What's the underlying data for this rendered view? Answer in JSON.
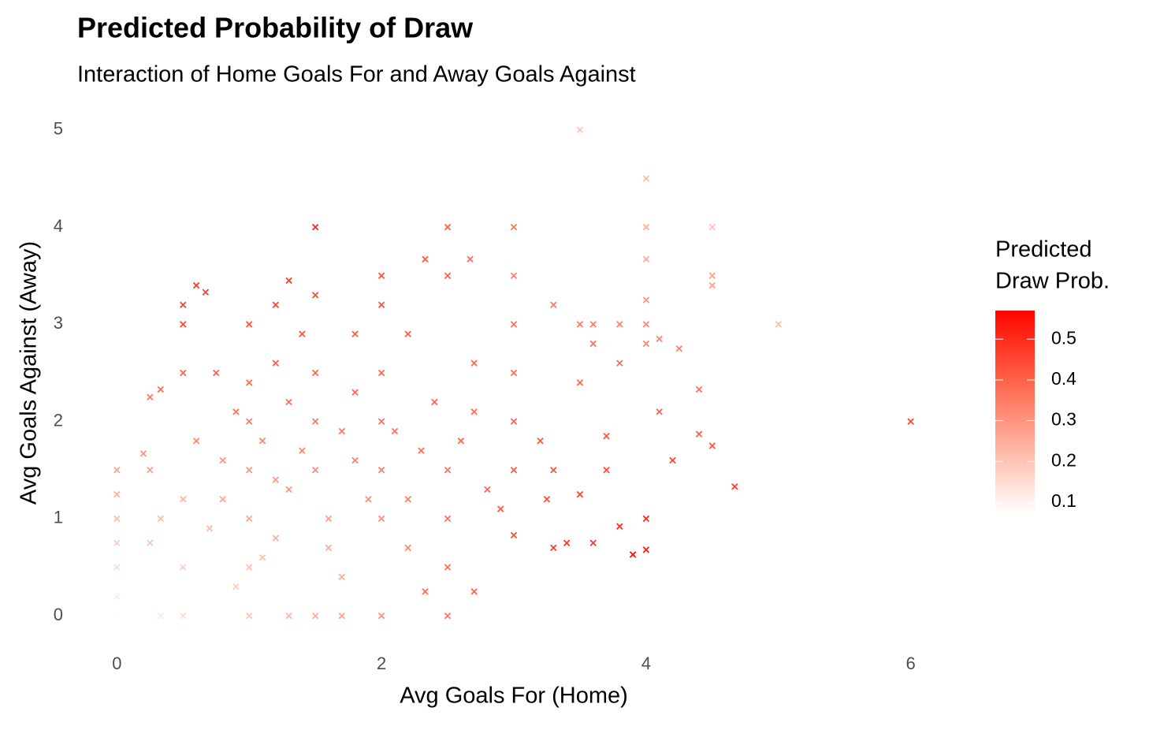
{
  "chart_data": {
    "type": "scatter",
    "title": "Predicted Probability of Draw",
    "subtitle": "Interaction of Home Goals For and Away Goals Against",
    "x_label": "Avg Goals For (Home)",
    "y_label": "Avg Goals Against (Away)",
    "legend_title": [
      "Predicted",
      "Draw Prob."
    ],
    "marker": "x",
    "low_color": "#ffffff",
    "high_color": "#ff0000",
    "colorlim": [
      0.073,
      0.57
    ],
    "colorticks": [
      0.1,
      0.2,
      0.3,
      0.4,
      0.5
    ],
    "xlim": [
      -0.3,
      6.3
    ],
    "xticks": [
      0,
      2,
      4,
      6
    ],
    "ylim": [
      -0.25,
      5.25
    ],
    "yticks": [
      0,
      1,
      2,
      3,
      4,
      5
    ],
    "grid": false,
    "x": [
      3.5,
      4,
      1.5,
      2.5,
      3,
      4,
      4.5,
      4.5,
      4.5,
      5,
      6,
      4.67,
      4.2,
      4.5,
      3.9,
      4,
      4,
      0.6,
      0.67,
      0.5,
      0.5,
      0,
      0,
      0,
      0,
      0,
      0,
      0,
      0.33,
      0.5,
      1,
      1.5,
      2,
      2.5,
      1.3,
      1.7,
      2.7,
      2.33,
      0.25,
      0.33,
      0.2,
      0.25,
      0.25,
      0.33,
      0.5,
      4,
      4,
      4,
      4,
      3.5,
      3.6,
      3.8,
      4.1,
      4.25,
      4.4,
      4.1,
      4.4,
      3.8,
      3.3,
      3.5,
      3.7,
      3.7,
      3.4,
      3.3,
      3.6,
      3.8,
      3.25,
      3,
      3,
      3,
      3,
      3,
      3,
      2.5,
      2.33,
      2.67,
      2,
      2,
      1.5,
      1.3,
      1.2,
      1,
      0.75,
      0.9,
      1,
      1,
      1,
      1,
      1.2,
      1.3,
      1.4,
      1.5,
      1.5,
      1.5,
      1.6,
      1.8,
      1.8,
      2,
      2,
      2,
      2,
      2.2,
      2.3,
      2.4,
      2.5,
      2.5,
      2.5,
      2.6,
      2.7,
      2.8,
      1.2,
      0.8,
      0.7,
      0.6,
      0.9,
      1.1,
      1.7,
      2.2,
      0.5,
      0.5,
      1.4,
      1.8,
      2.2,
      3.2,
      3.5,
      3.6,
      1.3,
      1.1,
      0.8,
      1.6,
      1.9,
      2.1,
      2.7,
      1.7,
      1.2,
      1.0,
      3.3,
      2.9
    ],
    "y": [
      5,
      4.5,
      4,
      4,
      4,
      4,
      4,
      3.5,
      3.4,
      3,
      2,
      1.33,
      1.6,
      1.75,
      0.63,
      0.68,
      1,
      3.4,
      3.33,
      3.2,
      3,
      1.5,
      1.25,
      1,
      0.75,
      0.5,
      0.2,
      0,
      0,
      0,
      0,
      0,
      0,
      0,
      0,
      0,
      0.25,
      0.25,
      2.25,
      2.33,
      1.67,
      1.5,
      0.75,
      1,
      2.5,
      3.67,
      3.25,
      3,
      2.8,
      3,
      3,
      3,
      2.85,
      2.75,
      2.33,
      2.1,
      1.87,
      2.6,
      3.2,
      2.4,
      1.85,
      1.5,
      0.75,
      0.7,
      0.75,
      0.92,
      1.2,
      0.83,
      1.5,
      2,
      2.5,
      3,
      3.5,
      3.5,
      3.67,
      3.67,
      3.5,
      3.2,
      3.3,
      3.45,
      3.2,
      3,
      2.5,
      2.1,
      2,
      1.5,
      1,
      0.5,
      0.8,
      1.3,
      1.7,
      1.5,
      2,
      2.5,
      1.0,
      1.6,
      2.3,
      1,
      1.5,
      2,
      2.5,
      1.2,
      1.7,
      2.2,
      1.5,
      1,
      0.5,
      1.8,
      2.6,
      1.3,
      2.6,
      1.2,
      0.9,
      1.8,
      0.3,
      0.6,
      0.4,
      0.7,
      0.5,
      1.2,
      2.9,
      2.9,
      2.9,
      1.8,
      1.25,
      2.8,
      2.2,
      1.8,
      1.6,
      0.7,
      1.2,
      1.9,
      2.1,
      1.9,
      1.4,
      2.4,
      1.5,
      1.1
    ],
    "color_values": [
      0.2,
      0.22,
      0.5,
      0.4,
      0.35,
      0.25,
      0.2,
      0.27,
      0.28,
      0.22,
      0.45,
      0.47,
      0.45,
      0.42,
      0.55,
      0.53,
      0.5,
      0.48,
      0.47,
      0.46,
      0.45,
      0.27,
      0.24,
      0.21,
      0.18,
      0.15,
      0.12,
      0.08,
      0.12,
      0.15,
      0.2,
      0.25,
      0.3,
      0.36,
      0.23,
      0.27,
      0.4,
      0.37,
      0.35,
      0.37,
      0.3,
      0.28,
      0.2,
      0.22,
      0.4,
      0.25,
      0.3,
      0.32,
      0.33,
      0.35,
      0.35,
      0.33,
      0.33,
      0.34,
      0.36,
      0.4,
      0.4,
      0.37,
      0.35,
      0.38,
      0.42,
      0.44,
      0.48,
      0.47,
      0.48,
      0.5,
      0.44,
      0.44,
      0.42,
      0.4,
      0.38,
      0.37,
      0.34,
      0.4,
      0.42,
      0.38,
      0.43,
      0.43,
      0.45,
      0.47,
      0.45,
      0.43,
      0.4,
      0.36,
      0.35,
      0.3,
      0.26,
      0.2,
      0.24,
      0.3,
      0.33,
      0.32,
      0.35,
      0.39,
      0.28,
      0.34,
      0.38,
      0.31,
      0.34,
      0.37,
      0.39,
      0.34,
      0.37,
      0.39,
      0.37,
      0.36,
      0.36,
      0.38,
      0.38,
      0.39,
      0.4,
      0.26,
      0.22,
      0.32,
      0.18,
      0.21,
      0.25,
      0.32,
      0.17,
      0.24,
      0.42,
      0.41,
      0.4,
      0.41,
      0.45,
      0.37,
      0.37,
      0.33,
      0.3,
      0.25,
      0.31,
      0.36,
      0.38,
      0.35,
      0.29,
      0.38,
      0.43,
      0.41
    ]
  }
}
